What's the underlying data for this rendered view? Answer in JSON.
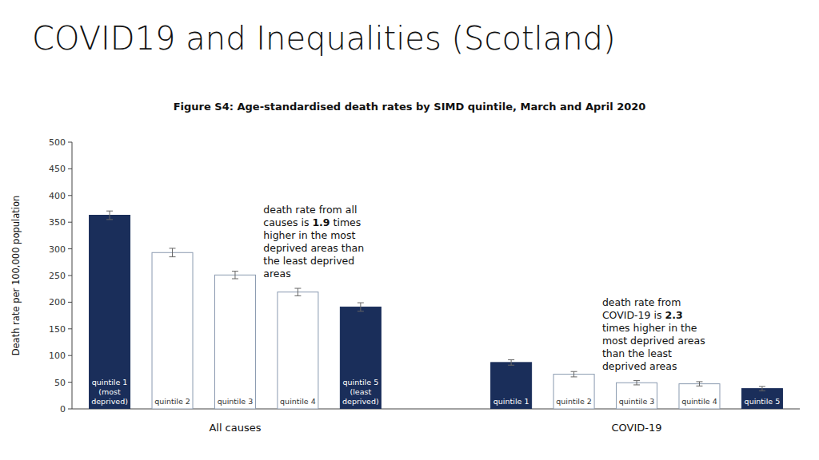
{
  "chart_data": {
    "type": "bar",
    "title": "COVID19 and Inequalities (Scotland)",
    "subtitle": "Figure S4: Age-standardised death rates by SIMD quintile, March and April 2020",
    "y_label": "Death rate per 100,000 population",
    "ylim": [
      0,
      500
    ],
    "yticks": [
      0,
      50,
      100,
      150,
      200,
      250,
      300,
      350,
      400,
      450,
      500
    ],
    "grid": false,
    "series": [
      {
        "name": "All causes",
        "categories": [
          "quintile 1\n(most\ndeprived)",
          "quintile 2",
          "quintile 3",
          "quintile 4",
          "quintile 5\n(least\ndeprived)"
        ],
        "values": [
          363,
          293,
          251,
          219,
          191
        ],
        "errors": [
          8,
          8,
          7,
          7,
          8
        ],
        "colors": [
          "#1a2e5a",
          "#ffffff",
          "#ffffff",
          "#ffffff",
          "#1a2e5a"
        ],
        "annotation": [
          "death rate from all",
          "causes is 1.9 times",
          "higher in the most",
          "deprived areas than",
          "the least deprived",
          "areas"
        ]
      },
      {
        "name": "COVID-19",
        "categories": [
          "quintile 1",
          "quintile 2",
          "quintile 3",
          "quintile 4",
          "quintile 5"
        ],
        "values": [
          87,
          65,
          49,
          47,
          38
        ],
        "errors": [
          5,
          5,
          4,
          4,
          4
        ],
        "colors": [
          "#1a2e5a",
          "#ffffff",
          "#ffffff",
          "#ffffff",
          "#1a2e5a"
        ],
        "annotation": [
          "death rate from",
          "COVID-19 is 2.3",
          "times higher in the",
          "most deprived areas",
          "than the least",
          "deprived areas"
        ]
      }
    ]
  }
}
